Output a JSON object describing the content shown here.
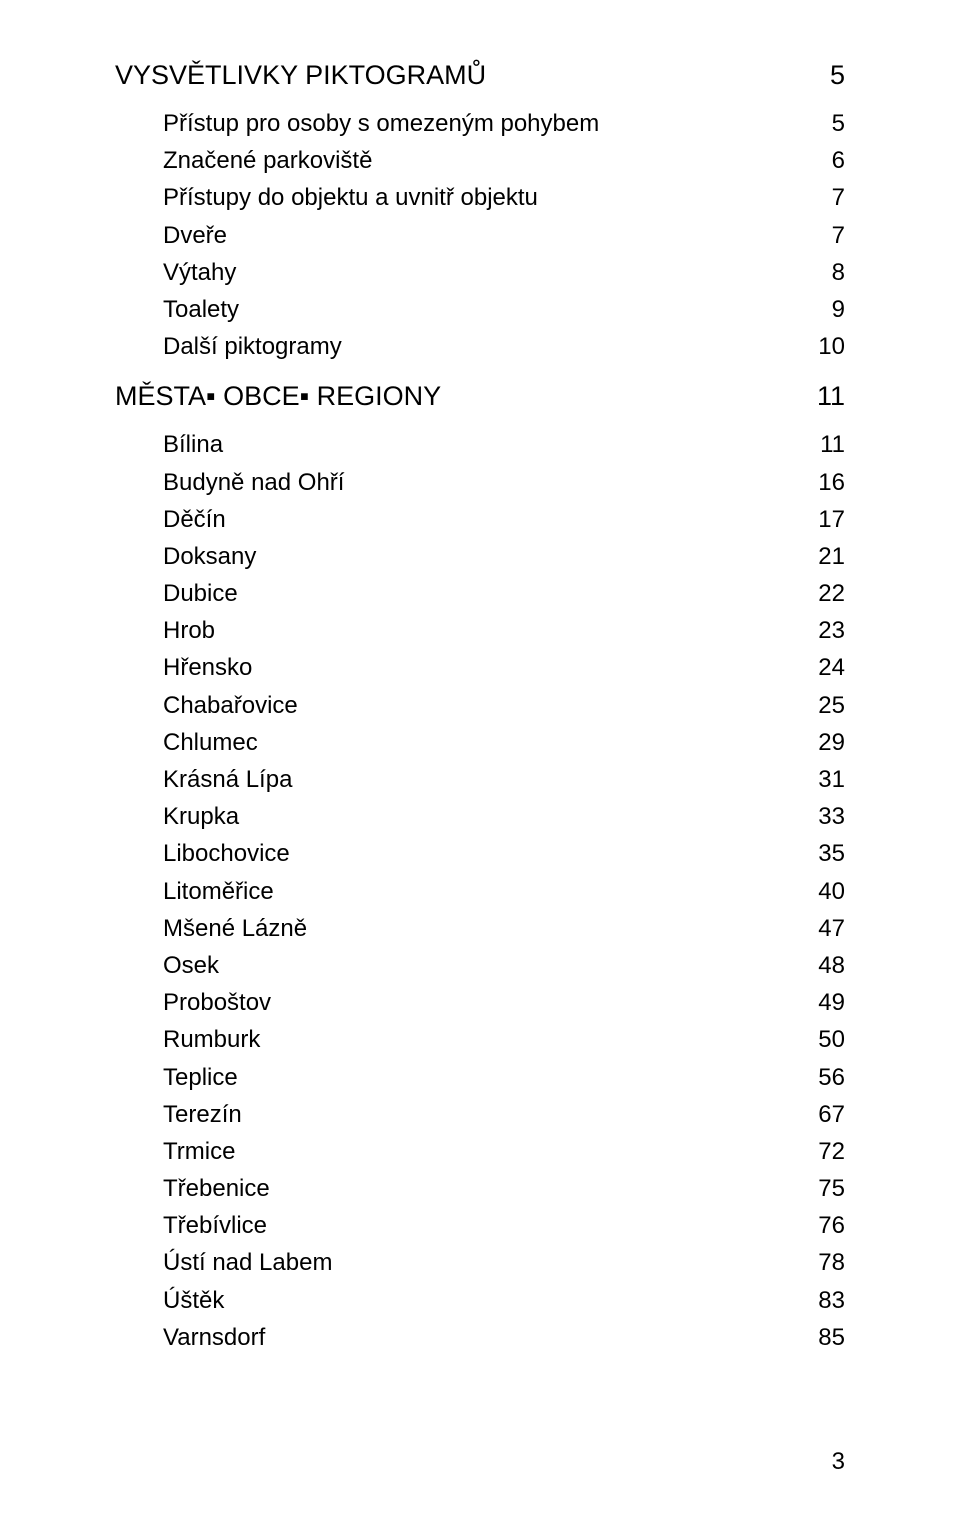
{
  "page_number": "3",
  "sections": [
    {
      "title": "VYSVĚTLIVKY PIKTOGRAMŮ",
      "page": "5",
      "items": [
        {
          "label": "Přístup pro osoby s omezeným pohybem",
          "page": "5"
        },
        {
          "label": "Značené parkoviště",
          "page": "6"
        },
        {
          "label": "Přístupy do objektu a uvnitř objektu",
          "page": "7"
        },
        {
          "label": "Dveře",
          "page": "7"
        },
        {
          "label": "Výtahy",
          "page": "8"
        },
        {
          "label": "Toalety",
          "page": "9"
        },
        {
          "label": "Další piktogramy",
          "page": "10"
        }
      ]
    },
    {
      "title": "MĚSTA▪ OBCE▪ REGIONY",
      "page": "11",
      "items": [
        {
          "label": "Bílina",
          "page": "11"
        },
        {
          "label": "Budyně nad Ohří",
          "page": "16"
        },
        {
          "label": "Děčín",
          "page": "17"
        },
        {
          "label": "Doksany",
          "page": "21"
        },
        {
          "label": "Dubice",
          "page": "22"
        },
        {
          "label": "Hrob",
          "page": "23"
        },
        {
          "label": "Hřensko",
          "page": "24"
        },
        {
          "label": "Chabařovice",
          "page": "25"
        },
        {
          "label": "Chlumec",
          "page": "29"
        },
        {
          "label": "Krásná Lípa",
          "page": "31"
        },
        {
          "label": "Krupka",
          "page": "33"
        },
        {
          "label": "Libochovice",
          "page": "35"
        },
        {
          "label": "Litoměřice",
          "page": "40"
        },
        {
          "label": "Mšené Lázně",
          "page": "47"
        },
        {
          "label": "Osek",
          "page": "48"
        },
        {
          "label": "Proboštov",
          "page": "49"
        },
        {
          "label": "Rumburk",
          "page": "50"
        },
        {
          "label": "Teplice",
          "page": "56"
        },
        {
          "label": "Terezín",
          "page": "67"
        },
        {
          "label": "Trmice",
          "page": "72"
        },
        {
          "label": "Třebenice",
          "page": "75"
        },
        {
          "label": "Třebívlice",
          "page": "76"
        },
        {
          "label": "Ústí nad Labem",
          "page": "78"
        },
        {
          "label": "Úštěk",
          "page": "83"
        },
        {
          "label": "Varnsdorf",
          "page": "85"
        }
      ]
    }
  ]
}
